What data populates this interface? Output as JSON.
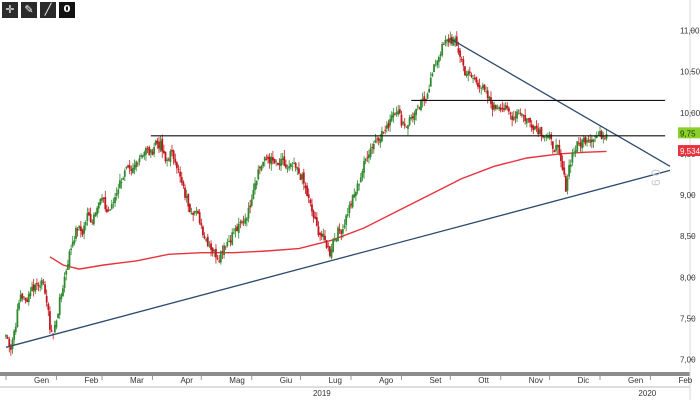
{
  "toolbar": {
    "buttons": [
      {
        "icon": "crosshair-icon",
        "glyph": "✛"
      },
      {
        "icon": "pencil-icon",
        "glyph": "✎"
      },
      {
        "icon": "trendline-icon",
        "glyph": "╱"
      },
      {
        "icon": "zero-count-badge",
        "glyph": "0"
      }
    ]
  },
  "chart_data": {
    "type": "candlestick",
    "title": "",
    "xlabel": "",
    "ylabel": "",
    "ylim": [
      6.85,
      11.2
    ],
    "y_ticks": [
      "7,00",
      "7,50",
      "8,00",
      "8,50",
      "9,00",
      "9,50",
      "10,00",
      "10,50",
      "11,00"
    ],
    "y_tick_values": [
      7.0,
      7.5,
      8.0,
      8.5,
      9.0,
      9.5,
      10.0,
      10.5,
      11.0
    ],
    "x_tick_labels": [
      "Gen",
      "Feb",
      "Mar",
      "Apr",
      "Mag",
      "Giu",
      "Lug",
      "Ago",
      "Set",
      "Ott",
      "Nov",
      "Dic",
      "Gen",
      "Feb"
    ],
    "x_tick_days": [
      0,
      31,
      59,
      90,
      120,
      151,
      181,
      212,
      243,
      273,
      304,
      334,
      365,
      396
    ],
    "x_range_days": [
      0,
      408
    ],
    "year_labels": [
      {
        "label": "2019",
        "day": 180
      },
      {
        "label": "2020",
        "day": 380
      }
    ],
    "close_path": [
      [
        0,
        7.3
      ],
      [
        3,
        7.15
      ],
      [
        6,
        7.45
      ],
      [
        9,
        7.8
      ],
      [
        12,
        7.7
      ],
      [
        15,
        7.85
      ],
      [
        18,
        7.9
      ],
      [
        21,
        7.95
      ],
      [
        24,
        7.85
      ],
      [
        27,
        7.4
      ],
      [
        29,
        7.3
      ],
      [
        32,
        7.6
      ],
      [
        35,
        7.9
      ],
      [
        38,
        8.2
      ],
      [
        41,
        8.45
      ],
      [
        44,
        8.6
      ],
      [
        47,
        8.55
      ],
      [
        50,
        8.75
      ],
      [
        53,
        8.7
      ],
      [
        56,
        8.9
      ],
      [
        59,
        8.95
      ],
      [
        62,
        8.8
      ],
      [
        65,
        8.85
      ],
      [
        68,
        9.05
      ],
      [
        71,
        9.2
      ],
      [
        74,
        9.3
      ],
      [
        77,
        9.25
      ],
      [
        80,
        9.4
      ],
      [
        83,
        9.5
      ],
      [
        86,
        9.55
      ],
      [
        89,
        9.5
      ],
      [
        92,
        9.65
      ],
      [
        95,
        9.6
      ],
      [
        98,
        9.4
      ],
      [
        101,
        9.5
      ],
      [
        104,
        9.45
      ],
      [
        107,
        9.2
      ],
      [
        110,
        9.0
      ],
      [
        113,
        8.85
      ],
      [
        116,
        8.8
      ],
      [
        119,
        8.7
      ],
      [
        122,
        8.5
      ],
      [
        125,
        8.4
      ],
      [
        128,
        8.3
      ],
      [
        131,
        8.25
      ],
      [
        134,
        8.4
      ],
      [
        137,
        8.45
      ],
      [
        140,
        8.55
      ],
      [
        143,
        8.6
      ],
      [
        146,
        8.7
      ],
      [
        149,
        8.8
      ],
      [
        152,
        9.1
      ],
      [
        155,
        9.3
      ],
      [
        158,
        9.4
      ],
      [
        161,
        9.45
      ],
      [
        164,
        9.4
      ],
      [
        167,
        9.35
      ],
      [
        170,
        9.4
      ],
      [
        173,
        9.3
      ],
      [
        176,
        9.35
      ],
      [
        179,
        9.3
      ],
      [
        182,
        9.2
      ],
      [
        185,
        9.0
      ],
      [
        188,
        8.8
      ],
      [
        191,
        8.6
      ],
      [
        194,
        8.5
      ],
      [
        197,
        8.4
      ],
      [
        199,
        8.3
      ],
      [
        201,
        8.45
      ],
      [
        204,
        8.55
      ],
      [
        207,
        8.6
      ],
      [
        210,
        8.8
      ],
      [
        213,
        8.95
      ],
      [
        216,
        9.1
      ],
      [
        219,
        9.3
      ],
      [
        222,
        9.5
      ],
      [
        225,
        9.6
      ],
      [
        228,
        9.7
      ],
      [
        231,
        9.75
      ],
      [
        234,
        9.8
      ],
      [
        237,
        10.0
      ],
      [
        240,
        10.05
      ],
      [
        243,
        9.9
      ],
      [
        246,
        9.85
      ],
      [
        249,
        9.95
      ],
      [
        252,
        10.0
      ],
      [
        255,
        10.1
      ],
      [
        258,
        10.2
      ],
      [
        261,
        10.4
      ],
      [
        264,
        10.6
      ],
      [
        267,
        10.75
      ],
      [
        270,
        10.85
      ],
      [
        273,
        10.9
      ],
      [
        276,
        10.85
      ],
      [
        279,
        10.7
      ],
      [
        282,
        10.5
      ],
      [
        285,
        10.45
      ],
      [
        288,
        10.4
      ],
      [
        291,
        10.35
      ],
      [
        294,
        10.25
      ],
      [
        297,
        10.15
      ],
      [
        300,
        10.05
      ],
      [
        303,
        10.1
      ],
      [
        306,
        10.05
      ],
      [
        309,
        10.0
      ],
      [
        312,
        9.95
      ],
      [
        315,
        10.05
      ],
      [
        318,
        9.95
      ],
      [
        321,
        9.9
      ],
      [
        324,
        9.85
      ],
      [
        327,
        9.8
      ],
      [
        330,
        9.75
      ],
      [
        333,
        9.7
      ],
      [
        336,
        9.6
      ],
      [
        339,
        9.55
      ],
      [
        342,
        9.3
      ],
      [
        344,
        9.1
      ],
      [
        346,
        9.35
      ],
      [
        348,
        9.5
      ],
      [
        351,
        9.6
      ],
      [
        354,
        9.65
      ],
      [
        357,
        9.7
      ],
      [
        360,
        9.7
      ],
      [
        363,
        9.72
      ],
      [
        366,
        9.73
      ],
      [
        369,
        9.74
      ]
    ],
    "moving_average": [
      [
        27,
        8.25
      ],
      [
        35,
        8.15
      ],
      [
        45,
        8.1
      ],
      [
        60,
        8.15
      ],
      [
        80,
        8.2
      ],
      [
        100,
        8.28
      ],
      [
        120,
        8.3
      ],
      [
        140,
        8.3
      ],
      [
        160,
        8.32
      ],
      [
        180,
        8.35
      ],
      [
        200,
        8.45
      ],
      [
        220,
        8.6
      ],
      [
        240,
        8.8
      ],
      [
        260,
        9.0
      ],
      [
        280,
        9.2
      ],
      [
        300,
        9.35
      ],
      [
        320,
        9.45
      ],
      [
        340,
        9.5
      ],
      [
        355,
        9.52
      ],
      [
        369,
        9.53
      ]
    ],
    "drawn_lines": [
      {
        "name": "support-trendline",
        "from": [
          0,
          7.15
        ],
        "to": [
          408,
          9.3
        ]
      },
      {
        "name": "resistance-trendline",
        "from": [
          273,
          10.9
        ],
        "to": [
          408,
          9.35
        ]
      },
      {
        "name": "horizontal-level-upper",
        "from": [
          249,
          10.15
        ],
        "to": [
          405,
          10.15
        ]
      },
      {
        "name": "horizontal-level-lower",
        "from": [
          89,
          9.72
        ],
        "to": [
          405,
          9.72
        ]
      }
    ],
    "price_tags": [
      {
        "label": "9,75",
        "value": 9.75,
        "color": "#8bcf2a",
        "text_color": "#1a3a00"
      },
      {
        "label": "9,5346",
        "value": 9.5346,
        "color": "#e8323c",
        "text_color": "#ffffff"
      }
    ],
    "watermark": "6 0",
    "colors": {
      "up": "#2f8a2f",
      "down": "#c4161c",
      "ma": "#e8323c",
      "trend": "#2c4a6e",
      "level": "#111111",
      "axis_band": "#8c8c8c"
    },
    "grid": false,
    "legend": "none"
  }
}
